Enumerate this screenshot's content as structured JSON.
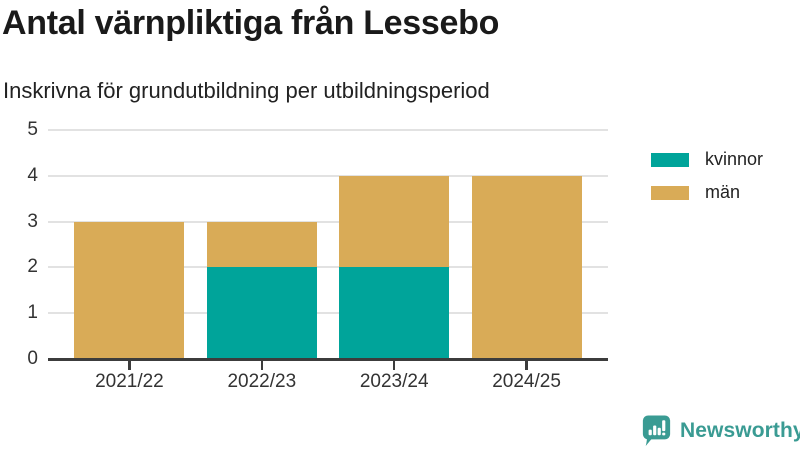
{
  "chart_data": {
    "type": "bar",
    "stacked": true,
    "title": "Antal värnpliktiga från Lessebo",
    "subtitle": "Inskrivna för grundutbildning per utbildningsperiod",
    "categories": [
      "2021/22",
      "2022/23",
      "2023/24",
      "2024/25"
    ],
    "series": [
      {
        "name": "kvinnor",
        "color": "#00a49a",
        "values": [
          0,
          2,
          2,
          0
        ]
      },
      {
        "name": "män",
        "color": "#d9ab57",
        "values": [
          3,
          1,
          2,
          4
        ]
      }
    ],
    "xlabel": "",
    "ylabel": "",
    "ylim": [
      0,
      5
    ],
    "yticks": [
      0,
      1,
      2,
      3,
      4,
      5
    ],
    "grid": true,
    "legend_position": "right-top",
    "gridline_color": "#e2e2e2",
    "axis_color": "#3c3c3c",
    "tick_label_color": "#333333"
  },
  "branding": {
    "name": "Newsworthy",
    "color": "#3a9b93"
  }
}
